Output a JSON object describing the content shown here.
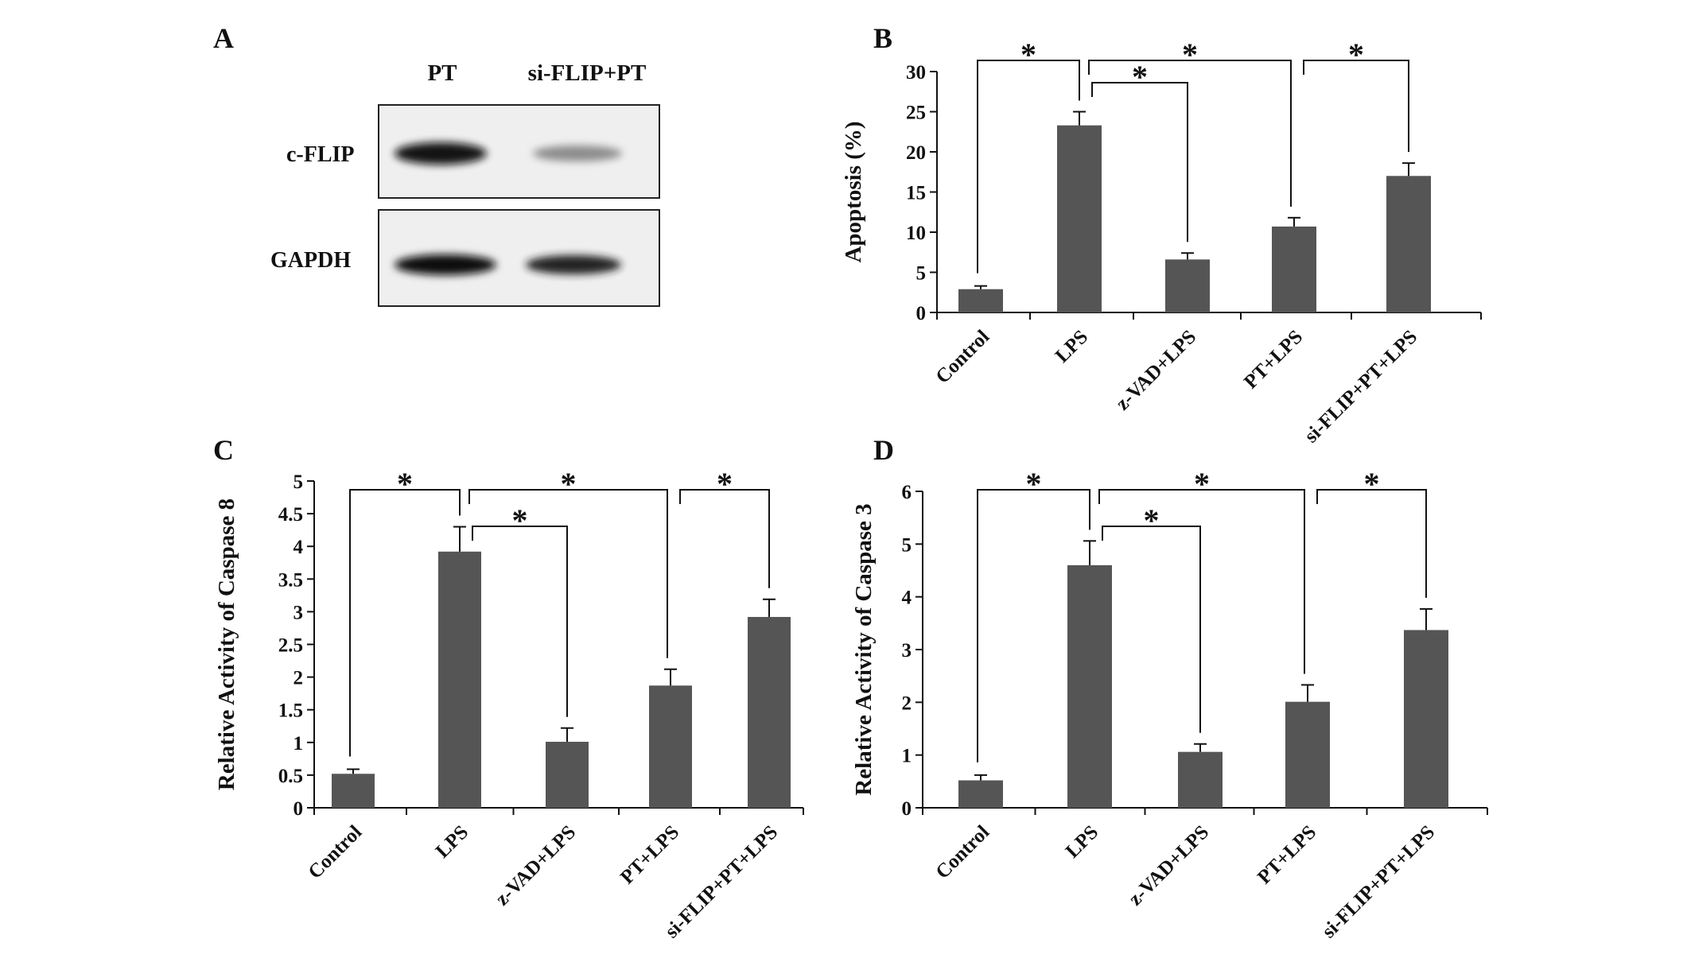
{
  "panel_labels": [
    "A",
    "B",
    "C",
    "D"
  ],
  "western_blot": {
    "lanes": [
      "PT",
      "si-FLIP+PT"
    ],
    "rows": [
      {
        "label": "c-FLIP",
        "intensity": [
          0.95,
          0.45
        ]
      },
      {
        "label": "GAPDH",
        "intensity": [
          1.0,
          0.95
        ]
      }
    ]
  },
  "chart_data": [
    {
      "panel": "B",
      "type": "bar",
      "categories": [
        "Control",
        "LPS",
        "z-VAD+LPS",
        "PT+LPS",
        "si-FLIP+PT+LPS"
      ],
      "values": [
        2.9,
        23.3,
        6.6,
        10.7,
        17.0
      ],
      "errors": [
        0.4,
        1.7,
        0.8,
        1.1,
        1.6
      ],
      "ylabel": "Apoptosis (%)",
      "ylim": [
        0,
        30
      ],
      "yticks": [
        "0",
        "5",
        "10",
        "15",
        "20",
        "25",
        "30"
      ],
      "significance": [
        {
          "from": "Control",
          "to": "LPS",
          "label": "*"
        },
        {
          "from": "LPS",
          "to": "z-VAD+LPS",
          "label": "*"
        },
        {
          "from": "LPS",
          "to": "PT+LPS",
          "label": "*"
        },
        {
          "from": "PT+LPS",
          "to": "si-FLIP+PT+LPS",
          "label": "*"
        }
      ]
    },
    {
      "panel": "C",
      "type": "bar",
      "categories": [
        "Control",
        "LPS",
        "z-VAD+LPS",
        "PT+LPS",
        "si-FLIP+PT+LPS"
      ],
      "values": [
        0.52,
        3.92,
        1.01,
        1.87,
        2.92
      ],
      "errors": [
        0.07,
        0.38,
        0.21,
        0.25,
        0.27
      ],
      "ylabel": "Relative Activity of Caspase 8",
      "ylim": [
        0,
        5
      ],
      "yticks": [
        "0",
        "0.5",
        "1",
        "1.5",
        "2",
        "2.5",
        "3",
        "3.5",
        "4",
        "4.5",
        "5"
      ],
      "significance": [
        {
          "from": "Control",
          "to": "LPS",
          "label": "*"
        },
        {
          "from": "LPS",
          "to": "z-VAD+LPS",
          "label": "*"
        },
        {
          "from": "LPS",
          "to": "PT+LPS",
          "label": "*"
        },
        {
          "from": "PT+LPS",
          "to": "si-FLIP+PT+LPS",
          "label": "*"
        }
      ]
    },
    {
      "panel": "D",
      "type": "bar",
      "categories": [
        "Control",
        "LPS",
        "z-VAD+LPS",
        "PT+LPS",
        "si-FLIP+PT+LPS"
      ],
      "values": [
        0.52,
        4.6,
        1.06,
        2.01,
        3.37
      ],
      "errors": [
        0.1,
        0.46,
        0.15,
        0.32,
        0.4
      ],
      "ylabel": "Relative Activity of Caspase 3",
      "ylim": [
        0,
        6
      ],
      "yticks": [
        "0",
        "1",
        "2",
        "3",
        "4",
        "5",
        "6"
      ],
      "significance": [
        {
          "from": "Control",
          "to": "LPS",
          "label": "*"
        },
        {
          "from": "LPS",
          "to": "z-VAD+LPS",
          "label": "*"
        },
        {
          "from": "LPS",
          "to": "PT+LPS",
          "label": "*"
        },
        {
          "from": "PT+LPS",
          "to": "si-FLIP+PT+LPS",
          "label": "*"
        }
      ]
    }
  ]
}
